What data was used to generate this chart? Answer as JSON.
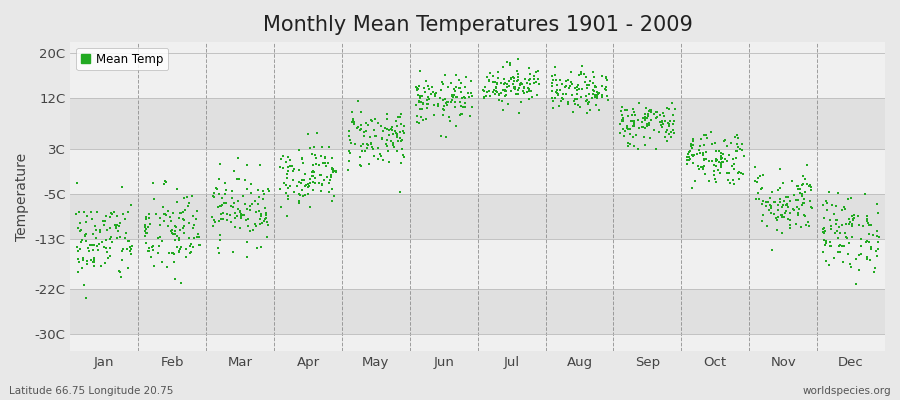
{
  "title": "Monthly Mean Temperatures 1901 - 2009",
  "ylabel": "Temperature",
  "subtitle_left": "Latitude 66.75 Longitude 20.75",
  "subtitle_right": "worldspecies.org",
  "ytick_labels": [
    "20C",
    "12C",
    "3C",
    "-5C",
    "-13C",
    "-22C",
    "-30C"
  ],
  "ytick_values": [
    20,
    12,
    3,
    -5,
    -13,
    -22,
    -30
  ],
  "ylim": [
    -33,
    22
  ],
  "months": [
    "Jan",
    "Feb",
    "Mar",
    "Apr",
    "May",
    "Jun",
    "Jul",
    "Aug",
    "Sep",
    "Oct",
    "Nov",
    "Dec"
  ],
  "month_means": [
    -13.5,
    -12.0,
    -7.5,
    -1.5,
    5.0,
    11.5,
    14.5,
    13.0,
    7.5,
    1.5,
    -6.5,
    -12.0
  ],
  "month_stds": [
    3.8,
    4.2,
    3.2,
    2.8,
    2.8,
    2.2,
    1.8,
    1.8,
    2.0,
    2.5,
    3.0,
    3.5
  ],
  "n_years": 109,
  "dot_color": "#22aa22",
  "dot_size": 4,
  "bg_color": "#e8e8e8",
  "plot_bg_light": "#f0f0f0",
  "plot_bg_dark": "#e0e0e0",
  "legend_label": "Mean Temp",
  "title_fontsize": 15,
  "axis_fontsize": 10,
  "tick_fontsize": 9.5,
  "seed": 42,
  "stripe_values": [
    20,
    12,
    3,
    -5,
    -13,
    -22,
    -30
  ]
}
